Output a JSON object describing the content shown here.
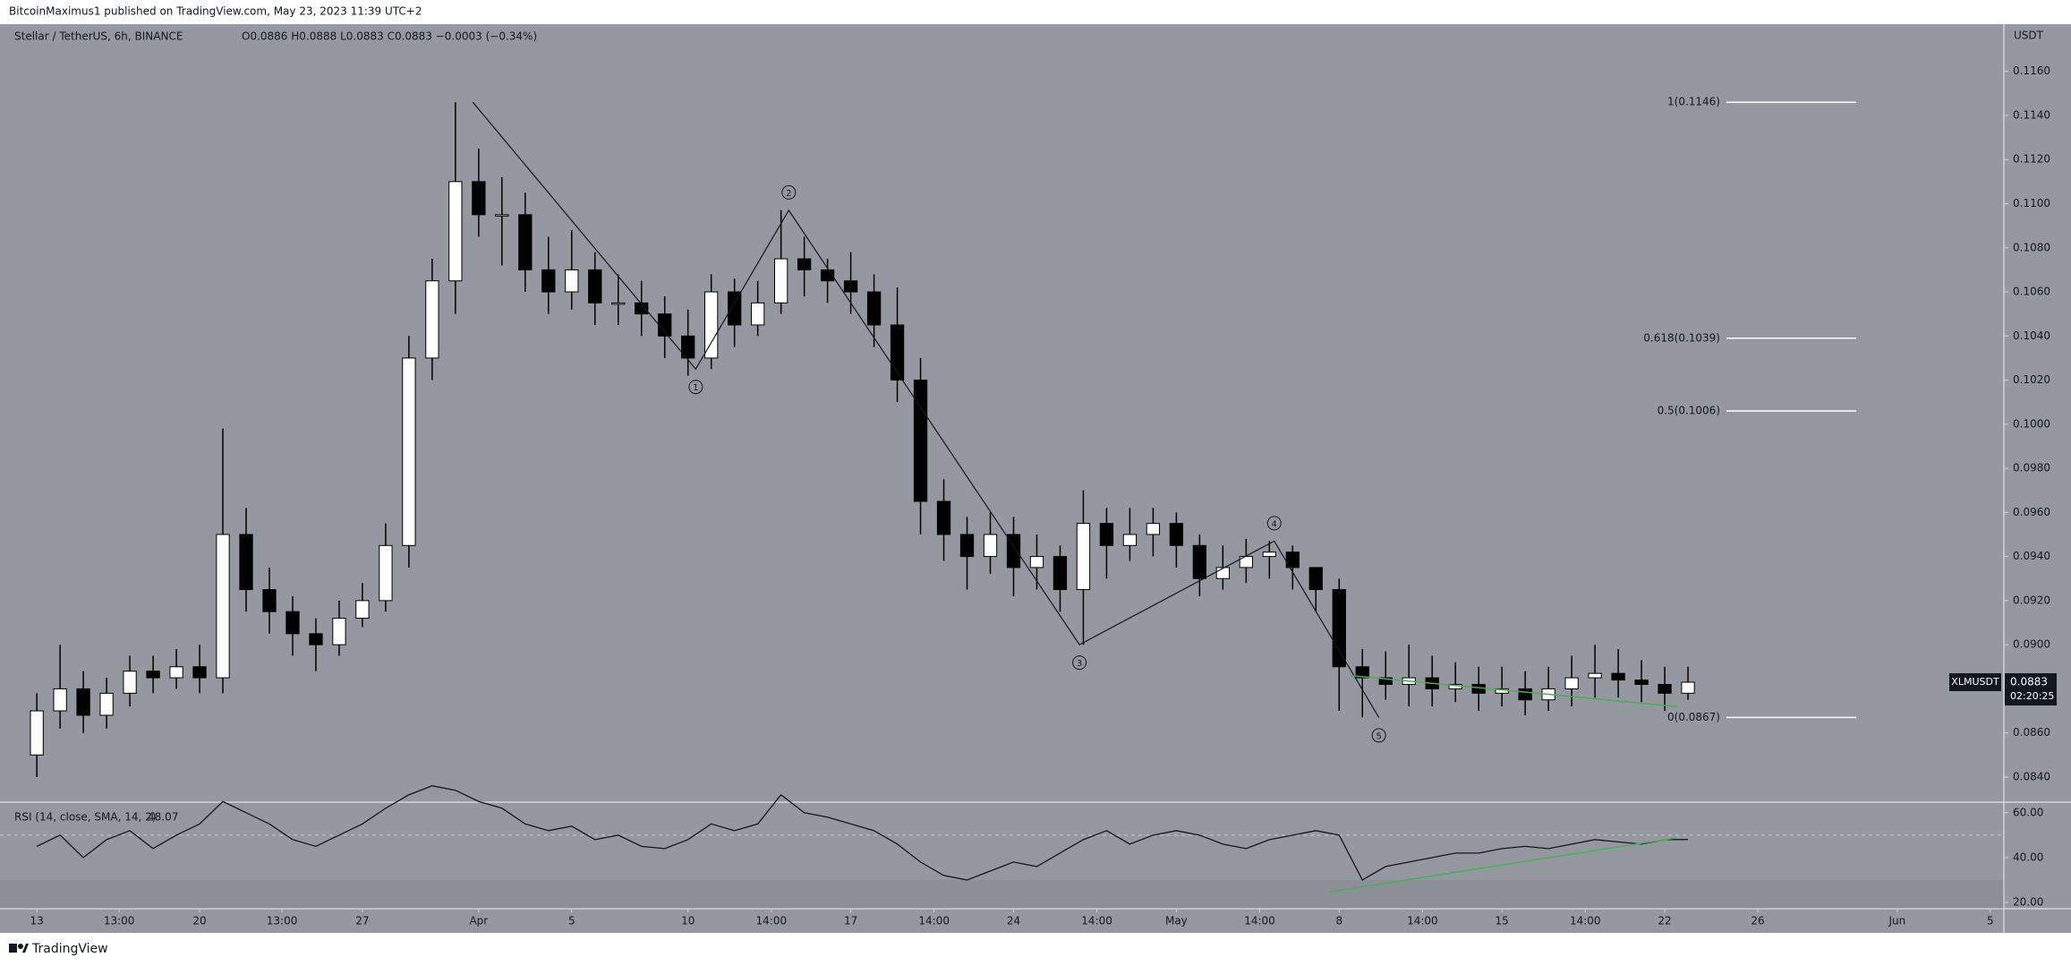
{
  "header": {
    "publisher": "BitcoinMaximus1 published on TradingView.com, May 23, 2023 11:39 UTC+2",
    "brand": "TradingView"
  },
  "chart_data": {
    "type": "candlestick",
    "title": "Stellar / TetherUS, 6h, BINANCE",
    "ohlc_legend": "O0.0886 H0.0888 L0.0883 C0.0883 −0.0003 (−0.34%)",
    "y_axis_label": "USDT",
    "up_color": "#ffffff",
    "down_color": "#000000",
    "wick_color": "#000000",
    "background": "#9598a1",
    "trend_color": "#4caf50",
    "grid": false,
    "x": [
      "2023-03-13",
      "2023-03-14",
      "2023-03-15",
      "2023-03-16",
      "2023-03-17",
      "2023-03-18",
      "2023-03-19",
      "2023-03-20",
      "2023-03-21",
      "2023-03-22",
      "2023-03-23",
      "2023-03-24",
      "2023-03-25",
      "2023-03-26",
      "2023-03-27",
      "2023-03-28",
      "2023-03-29",
      "2023-03-30",
      "2023-03-31",
      "2023-04-01",
      "2023-04-02",
      "2023-04-03",
      "2023-04-04",
      "2023-04-05",
      "2023-04-06",
      "2023-04-07",
      "2023-04-08",
      "2023-04-09",
      "2023-04-10",
      "2023-04-11",
      "2023-04-12",
      "2023-04-13",
      "2023-04-14",
      "2023-04-15",
      "2023-04-16",
      "2023-04-17",
      "2023-04-18",
      "2023-04-19",
      "2023-04-20",
      "2023-04-21",
      "2023-04-22",
      "2023-04-23",
      "2023-04-24",
      "2023-04-25",
      "2023-04-26",
      "2023-04-27",
      "2023-04-28",
      "2023-04-29",
      "2023-04-30",
      "2023-05-01",
      "2023-05-02",
      "2023-05-03",
      "2023-05-04",
      "2023-05-05",
      "2023-05-06",
      "2023-05-07",
      "2023-05-08",
      "2023-05-09",
      "2023-05-10",
      "2023-05-11",
      "2023-05-12",
      "2023-05-13",
      "2023-05-14",
      "2023-05-15",
      "2023-05-16",
      "2023-05-17",
      "2023-05-18",
      "2023-05-19",
      "2023-05-20",
      "2023-05-21",
      "2023-05-22",
      "2023-05-23"
    ],
    "open": [
      0.085,
      0.087,
      0.088,
      0.0868,
      0.0878,
      0.0888,
      0.0885,
      0.089,
      0.0885,
      0.095,
      0.0925,
      0.0915,
      0.0905,
      0.09,
      0.0912,
      0.092,
      0.0945,
      0.103,
      0.1065,
      0.111,
      0.1095,
      0.1095,
      0.107,
      0.106,
      0.107,
      0.1055,
      0.1055,
      0.105,
      0.104,
      0.103,
      0.106,
      0.1045,
      0.1055,
      0.1075,
      0.107,
      0.1065,
      0.106,
      0.1045,
      0.102,
      0.0965,
      0.095,
      0.094,
      0.095,
      0.0935,
      0.094,
      0.0925,
      0.0955,
      0.0945,
      0.095,
      0.0955,
      0.0945,
      0.093,
      0.0935,
      0.094,
      0.0942,
      0.0935,
      0.0925,
      0.089,
      0.0885,
      0.0882,
      0.0885,
      0.088,
      0.0882,
      0.0878,
      0.088,
      0.0875,
      0.088,
      0.0885,
      0.0887,
      0.0884,
      0.0882,
      0.0878
    ],
    "high": [
      0.0878,
      0.09,
      0.0888,
      0.0885,
      0.0895,
      0.0895,
      0.0898,
      0.09,
      0.0998,
      0.0962,
      0.0935,
      0.0922,
      0.0912,
      0.092,
      0.0928,
      0.0955,
      0.104,
      0.1075,
      0.1146,
      0.1125,
      0.1112,
      0.1105,
      0.1085,
      0.1088,
      0.1078,
      0.1068,
      0.1065,
      0.1058,
      0.1052,
      0.1068,
      0.1066,
      0.1065,
      0.1097,
      0.1085,
      0.1075,
      0.1078,
      0.1068,
      0.1062,
      0.103,
      0.0975,
      0.0958,
      0.096,
      0.0958,
      0.095,
      0.0945,
      0.097,
      0.0962,
      0.0962,
      0.0962,
      0.096,
      0.095,
      0.0945,
      0.0948,
      0.0947,
      0.0945,
      0.0932,
      0.093,
      0.0898,
      0.0897,
      0.09,
      0.0895,
      0.0892,
      0.089,
      0.089,
      0.0888,
      0.089,
      0.0895,
      0.09,
      0.0898,
      0.0893,
      0.089,
      0.089
    ],
    "low": [
      0.084,
      0.0862,
      0.086,
      0.0862,
      0.0872,
      0.0878,
      0.088,
      0.0878,
      0.0878,
      0.0915,
      0.0905,
      0.0895,
      0.0888,
      0.0895,
      0.0908,
      0.0915,
      0.0935,
      0.102,
      0.105,
      0.1085,
      0.1072,
      0.106,
      0.105,
      0.1052,
      0.1045,
      0.1045,
      0.104,
      0.103,
      0.1022,
      0.1025,
      0.1035,
      0.104,
      0.105,
      0.1058,
      0.1055,
      0.105,
      0.1035,
      0.101,
      0.095,
      0.0938,
      0.0925,
      0.0932,
      0.0922,
      0.0925,
      0.0915,
      0.09,
      0.093,
      0.0938,
      0.094,
      0.0935,
      0.0922,
      0.0925,
      0.0928,
      0.093,
      0.0925,
      0.0915,
      0.087,
      0.0867,
      0.0875,
      0.0872,
      0.0872,
      0.0874,
      0.087,
      0.0872,
      0.0868,
      0.087,
      0.0872,
      0.0876,
      0.0876,
      0.0874,
      0.087,
      0.0875
    ],
    "close": [
      0.087,
      0.088,
      0.0868,
      0.0878,
      0.0888,
      0.0885,
      0.089,
      0.0885,
      0.095,
      0.0925,
      0.0915,
      0.0905,
      0.09,
      0.0912,
      0.092,
      0.0945,
      0.103,
      0.1065,
      0.111,
      0.1095,
      0.1095,
      0.107,
      0.106,
      0.107,
      0.1055,
      0.1055,
      0.105,
      0.104,
      0.103,
      0.106,
      0.1045,
      0.1055,
      0.1075,
      0.107,
      0.1065,
      0.106,
      0.1045,
      0.102,
      0.0965,
      0.095,
      0.094,
      0.095,
      0.0935,
      0.094,
      0.0925,
      0.0955,
      0.0945,
      0.095,
      0.0955,
      0.0945,
      0.093,
      0.0935,
      0.094,
      0.0942,
      0.0935,
      0.0925,
      0.089,
      0.0885,
      0.0882,
      0.0885,
      0.088,
      0.0882,
      0.0878,
      0.088,
      0.0875,
      0.088,
      0.0885,
      0.0887,
      0.0884,
      0.0882,
      0.0878,
      0.0883
    ],
    "xlim": [
      "2023-03-11T10:00",
      "2023-06-05T14:00"
    ],
    "xticks": [
      {
        "value": "2023-03-13T00:00",
        "label": "13"
      },
      {
        "value": "2023-03-16T13:00",
        "label": "13:00"
      },
      {
        "value": "2023-03-20T00:00",
        "label": "20"
      },
      {
        "value": "2023-03-23T13:00",
        "label": "13:00"
      },
      {
        "value": "2023-03-27T00:00",
        "label": "27"
      },
      {
        "value": "2023-04-01T00:00",
        "label": "Apr"
      },
      {
        "value": "2023-04-05T00:00",
        "label": "5"
      },
      {
        "value": "2023-04-10T00:00",
        "label": "10"
      },
      {
        "value": "2023-04-13T14:00",
        "label": "14:00"
      },
      {
        "value": "2023-04-17T00:00",
        "label": "17"
      },
      {
        "value": "2023-04-20T14:00",
        "label": "14:00"
      },
      {
        "value": "2023-04-24T00:00",
        "label": "24"
      },
      {
        "value": "2023-04-27T14:00",
        "label": "14:00"
      },
      {
        "value": "2023-05-01T00:00",
        "label": "May"
      },
      {
        "value": "2023-05-04T14:00",
        "label": "14:00"
      },
      {
        "value": "2023-05-08T00:00",
        "label": "8"
      },
      {
        "value": "2023-05-11T14:00",
        "label": "14:00"
      },
      {
        "value": "2023-05-15T00:00",
        "label": "15"
      },
      {
        "value": "2023-05-18T14:00",
        "label": "14:00"
      },
      {
        "value": "2023-05-22T00:00",
        "label": "22"
      },
      {
        "value": "2023-05-26T00:00",
        "label": "26"
      },
      {
        "value": "2023-06-01T00:00",
        "label": "Jun"
      },
      {
        "value": "2023-06-05T00:00",
        "label": "5"
      }
    ],
    "ylim": [
      0.08286,
      0.11814
    ],
    "yticks": [
      {
        "value": 0.084,
        "label": "0.0840"
      },
      {
        "value": 0.086,
        "label": "0.0860"
      },
      {
        "value": 0.088,
        "label": "0.0880"
      },
      {
        "value": 0.09,
        "label": "0.0900"
      },
      {
        "value": 0.092,
        "label": "0.0920"
      },
      {
        "value": 0.094,
        "label": "0.0940"
      },
      {
        "value": 0.096,
        "label": "0.0960"
      },
      {
        "value": 0.098,
        "label": "0.0980"
      },
      {
        "value": 0.1,
        "label": "0.1000"
      },
      {
        "value": 0.102,
        "label": "0.1020"
      },
      {
        "value": 0.104,
        "label": "0.1040"
      },
      {
        "value": 0.106,
        "label": "0.1060"
      },
      {
        "value": 0.108,
        "label": "0.1080"
      },
      {
        "value": 0.11,
        "label": "0.1100"
      },
      {
        "value": 0.112,
        "label": "0.1120"
      },
      {
        "value": 0.114,
        "label": "0.1140"
      },
      {
        "value": 0.116,
        "label": "0.1160"
      }
    ],
    "wave_start": {
      "x": "2023-03-31T18:00",
      "y": 0.1146
    },
    "waves": [
      {
        "label": "1",
        "x": "2023-04-10T08:00",
        "y": 0.1025
      },
      {
        "label": "2",
        "x": "2023-04-14T08:00",
        "y": 0.1097
      },
      {
        "label": "3",
        "x": "2023-04-26T20:00",
        "y": 0.09
      },
      {
        "label": "4",
        "x": "2023-05-05T05:00",
        "y": 0.0947
      },
      {
        "label": "5",
        "x": "2023-05-09T17:00",
        "y": 0.0867
      }
    ],
    "fib_levels": [
      {
        "label": "1(0.1146)",
        "value": 0.1146
      },
      {
        "label": "0.618(0.1039)",
        "value": 0.1039
      },
      {
        "label": "0.5(0.1006)",
        "value": 0.1006
      },
      {
        "label": "0(0.0867)",
        "value": 0.0867
      }
    ],
    "trendline": {
      "x": [
        "2023-05-08T12:00",
        "2023-05-22T12:00"
      ],
      "y": [
        0.0886,
        0.0872
      ]
    },
    "last_price": {
      "symbol": "XLMUSDT",
      "value": 0.0883,
      "countdown": "02:20:25"
    },
    "rsi": {
      "legend": "RSI (14, close, SMA, 14, 2)",
      "values": [
        45,
        50,
        40,
        48,
        52,
        44,
        50,
        55,
        65,
        60,
        55,
        48,
        45,
        50,
        55,
        62,
        68,
        72,
        70,
        65,
        62,
        55,
        52,
        54,
        48,
        50,
        45,
        44,
        48,
        55,
        52,
        55,
        68,
        60,
        58,
        55,
        52,
        46,
        38,
        32,
        30,
        34,
        38,
        36,
        42,
        48,
        52,
        46,
        50,
        52,
        50,
        46,
        44,
        48,
        50,
        52,
        50,
        30,
        36,
        38,
        40,
        42,
        42,
        44,
        45,
        44,
        46,
        48,
        47,
        46,
        48,
        48.07
      ],
      "ylim": [
        17.2,
        64.7
      ],
      "yticks": [
        {
          "value": 20,
          "label": "20.00"
        },
        {
          "value": 40,
          "label": "40.00"
        },
        {
          "value": 60,
          "label": "60.00"
        }
      ],
      "trendline": {
        "x": [
          "2023-05-07T14:00",
          "2023-05-22T12:00"
        ],
        "y": [
          24.7,
          48.8
        ]
      }
    }
  }
}
